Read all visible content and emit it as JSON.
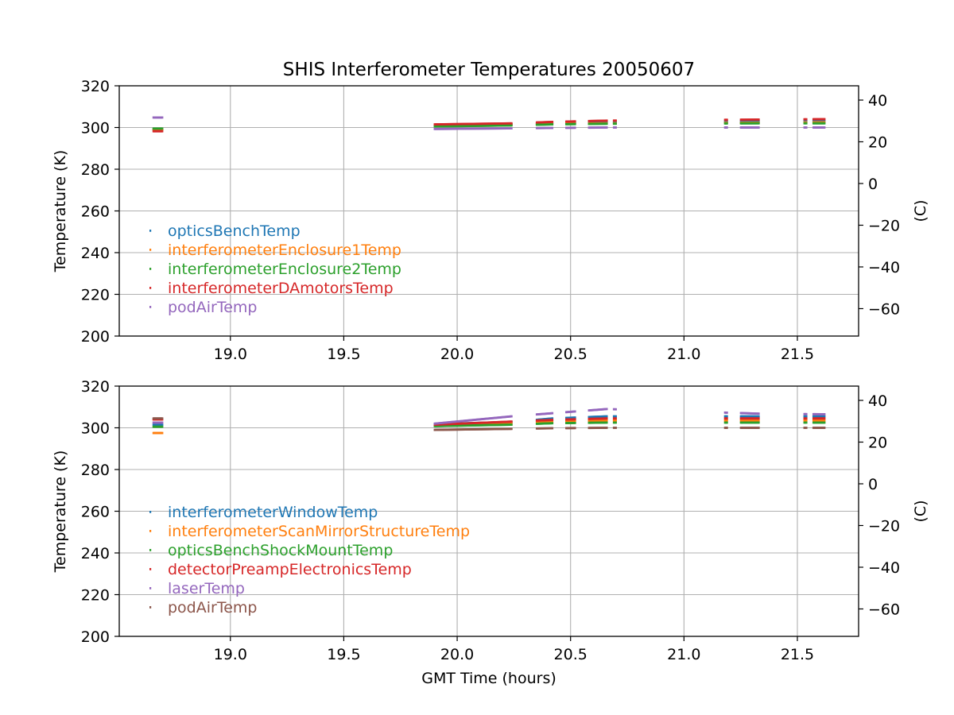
{
  "chart_data": [
    {
      "type": "scatter",
      "title": "SHIS Interferometer Temperatures 20050607",
      "xlabel": "",
      "ylabel": "Temperature (K)",
      "ylabel_right": "(C)",
      "xlim": [
        18.51,
        21.77
      ],
      "ylim": [
        200,
        320
      ],
      "ylim_right": [
        -73.15,
        46.85
      ],
      "x_ticks": [
        "19.0",
        "19.5",
        "20.0",
        "20.5",
        "21.0",
        "21.5"
      ],
      "y_ticks": [
        "200",
        "220",
        "240",
        "260",
        "280",
        "300",
        "320"
      ],
      "y_ticks_right": [
        "−60",
        "−40",
        "−20",
        "0",
        "20",
        "40"
      ],
      "grid": true,
      "legend_position": "lower left",
      "segments": [
        [
          18.66,
          18.7
        ],
        [
          19.9,
          20.24
        ],
        [
          20.35,
          20.42
        ],
        [
          20.48,
          20.52
        ],
        [
          20.58,
          20.66
        ],
        [
          20.69,
          20.7
        ],
        [
          21.18,
          21.19
        ],
        [
          21.25,
          21.33
        ],
        [
          21.53,
          21.54
        ],
        [
          21.57,
          21.62
        ]
      ],
      "series": [
        {
          "name": "opticsBenchTemp",
          "color": "#1f77b4",
          "x": [
            18.66,
            18.7,
            19.9,
            20.24,
            20.42,
            20.66,
            21.33,
            21.62
          ],
          "y": [
            299.0,
            299.0,
            301.0,
            301.5,
            302.0,
            302.5,
            303.0,
            303.3
          ]
        },
        {
          "name": "interferometerEnclosure1Temp",
          "color": "#ff7f0e",
          "x": [
            18.66,
            18.7,
            19.9,
            20.24,
            20.42,
            20.66,
            21.33,
            21.62
          ],
          "y": [
            299.2,
            299.2,
            301.0,
            301.3,
            301.7,
            302.0,
            302.3,
            302.5
          ]
        },
        {
          "name": "interferometerEnclosure2Temp",
          "color": "#2ca02c",
          "x": [
            18.66,
            18.7,
            19.9,
            20.24,
            20.42,
            20.66,
            21.33,
            21.62
          ],
          "y": [
            299.5,
            299.5,
            300.5,
            301.0,
            301.5,
            301.8,
            302.0,
            302.0
          ]
        },
        {
          "name": "interferometerDAmotorsTemp",
          "color": "#d62728",
          "x": [
            18.66,
            18.7,
            19.9,
            20.24,
            20.42,
            20.66,
            21.33,
            21.62
          ],
          "y": [
            298.2,
            298.2,
            301.5,
            302.0,
            302.7,
            303.3,
            303.8,
            304.0
          ]
        },
        {
          "name": "podAirTemp",
          "color": "#9467bd",
          "x": [
            18.66,
            18.7,
            19.9,
            20.24,
            20.42,
            20.66,
            21.33,
            21.62
          ],
          "y": [
            304.8,
            304.8,
            299.3,
            299.6,
            299.8,
            300.0,
            300.0,
            300.0
          ]
        }
      ]
    },
    {
      "type": "scatter",
      "title": "",
      "xlabel": "GMT Time (hours)",
      "ylabel": "Temperature (K)",
      "ylabel_right": "(C)",
      "xlim": [
        18.51,
        21.77
      ],
      "ylim": [
        200,
        320
      ],
      "ylim_right": [
        -73.15,
        46.85
      ],
      "x_ticks": [
        "19.0",
        "19.5",
        "20.0",
        "20.5",
        "21.0",
        "21.5"
      ],
      "y_ticks": [
        "200",
        "220",
        "240",
        "260",
        "280",
        "300",
        "320"
      ],
      "y_ticks_right": [
        "−60",
        "−40",
        "−20",
        "0",
        "20",
        "40"
      ],
      "grid": true,
      "legend_position": "lower left",
      "segments": [
        [
          18.66,
          18.7
        ],
        [
          19.9,
          20.24
        ],
        [
          20.35,
          20.42
        ],
        [
          20.48,
          20.52
        ],
        [
          20.58,
          20.66
        ],
        [
          20.69,
          20.7
        ],
        [
          21.18,
          21.19
        ],
        [
          21.25,
          21.33
        ],
        [
          21.53,
          21.54
        ],
        [
          21.57,
          21.62
        ]
      ],
      "series": [
        {
          "name": "interferometerWindowTemp",
          "color": "#1f77b4",
          "x": [
            18.66,
            18.7,
            19.9,
            20.24,
            20.42,
            20.66,
            21.33,
            21.62
          ],
          "y": [
            301.5,
            301.5,
            301.8,
            302.8,
            304.5,
            305.5,
            305.5,
            305.5
          ]
        },
        {
          "name": "interferometerScanMirrorStructureTemp",
          "color": "#ff7f0e",
          "x": [
            18.66,
            18.7,
            19.9,
            20.24,
            20.42,
            20.66,
            21.33,
            21.62
          ],
          "y": [
            297.5,
            297.5,
            301.0,
            302.0,
            303.0,
            303.5,
            303.5,
            303.5
          ]
        },
        {
          "name": "opticsBenchShockMountTemp",
          "color": "#2ca02c",
          "x": [
            18.66,
            18.7,
            19.9,
            20.24,
            20.42,
            20.66,
            21.33,
            21.62
          ],
          "y": [
            300.5,
            300.5,
            300.8,
            301.5,
            302.2,
            302.5,
            302.5,
            302.5
          ]
        },
        {
          "name": "detectorPreampElectronicsTemp",
          "color": "#d62728",
          "x": [
            18.66,
            18.7,
            19.9,
            20.24,
            20.42,
            20.66,
            21.33,
            21.62
          ],
          "y": [
            304.0,
            304.0,
            301.5,
            303.0,
            303.8,
            304.5,
            304.5,
            304.5
          ]
        },
        {
          "name": "laserTemp",
          "color": "#9467bd",
          "x": [
            18.66,
            18.7,
            19.9,
            20.24,
            20.42,
            20.66,
            21.33,
            21.62
          ],
          "y": [
            302.5,
            302.5,
            302.0,
            305.5,
            307.0,
            309.0,
            306.8,
            306.5
          ]
        },
        {
          "name": "podAirTemp",
          "color": "#8c564b",
          "x": [
            18.66,
            18.7,
            19.9,
            20.24,
            20.42,
            20.66,
            21.33,
            21.62
          ],
          "y": [
            304.5,
            304.5,
            299.0,
            299.5,
            299.8,
            300.0,
            300.0,
            300.0
          ]
        }
      ]
    }
  ]
}
